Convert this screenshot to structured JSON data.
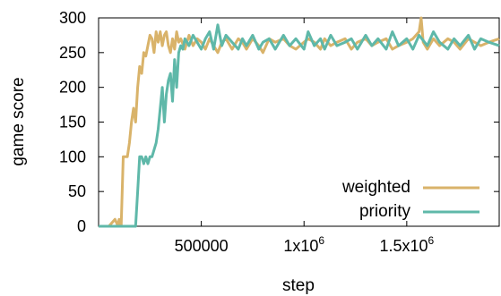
{
  "chart_data": {
    "type": "line",
    "xlabel": "step",
    "ylabel": "game score",
    "xlim": [
      0,
      1950000
    ],
    "ylim": [
      0,
      300
    ],
    "x_ticks": [
      {
        "value": 500000,
        "label": "500000"
      },
      {
        "value": 1000000,
        "label": "1x10",
        "exp": "6"
      },
      {
        "value": 1500000,
        "label": "1.5x10",
        "exp": "6"
      }
    ],
    "y_ticks": [
      0,
      50,
      100,
      150,
      200,
      250,
      300
    ],
    "grid": false,
    "legend_position": "bottom-right",
    "colors": {
      "weighted": "#d9b36a",
      "priority": "#5fb8a9"
    },
    "series": [
      {
        "name": "weighted",
        "x": [
          0,
          50000,
          80000,
          95000,
          100000,
          110000,
          120000,
          130000,
          140000,
          150000,
          160000,
          170000,
          180000,
          190000,
          200000,
          210000,
          220000,
          230000,
          240000,
          250000,
          260000,
          270000,
          280000,
          290000,
          300000,
          310000,
          320000,
          330000,
          340000,
          350000,
          360000,
          370000,
          380000,
          390000,
          400000,
          420000,
          440000,
          460000,
          480000,
          500000,
          520000,
          540000,
          560000,
          580000,
          600000,
          620000,
          650000,
          680000,
          700000,
          720000,
          750000,
          780000,
          800000,
          830000,
          860000,
          900000,
          930000,
          960000,
          1000000,
          1020000,
          1050000,
          1080000,
          1100000,
          1130000,
          1160000,
          1200000,
          1230000,
          1260000,
          1300000,
          1330000,
          1360000,
          1400000,
          1430000,
          1460000,
          1500000,
          1530000,
          1560000,
          1570000,
          1580000,
          1600000,
          1630000,
          1660000,
          1700000,
          1730000,
          1760000,
          1800000,
          1830000,
          1860000,
          1900000,
          1950000
        ],
        "y": [
          0,
          0,
          10,
          0,
          10,
          0,
          100,
          100,
          100,
          120,
          150,
          170,
          150,
          200,
          230,
          220,
          250,
          245,
          260,
          275,
          270,
          250,
          280,
          265,
          280,
          260,
          275,
          280,
          260,
          250,
          270,
          255,
          280,
          265,
          270,
          255,
          275,
          260,
          270,
          265,
          255,
          270,
          260,
          250,
          265,
          270,
          255,
          270,
          265,
          255,
          270,
          260,
          250,
          270,
          265,
          270,
          260,
          255,
          265,
          270,
          265,
          255,
          270,
          260,
          265,
          270,
          255,
          265,
          270,
          260,
          265,
          270,
          255,
          260,
          265,
          270,
          280,
          300,
          265,
          255,
          270,
          260,
          270,
          265,
          255,
          270,
          265,
          260,
          265,
          270
        ]
      },
      {
        "name": "priority",
        "x": [
          0,
          180000,
          190000,
          200000,
          210000,
          220000,
          230000,
          240000,
          250000,
          260000,
          270000,
          280000,
          290000,
          300000,
          310000,
          320000,
          330000,
          340000,
          350000,
          360000,
          370000,
          380000,
          390000,
          400000,
          410000,
          420000,
          440000,
          460000,
          480000,
          500000,
          520000,
          540000,
          560000,
          580000,
          600000,
          620000,
          650000,
          680000,
          700000,
          720000,
          750000,
          780000,
          800000,
          830000,
          860000,
          900000,
          930000,
          960000,
          1000000,
          1020000,
          1050000,
          1080000,
          1100000,
          1130000,
          1160000,
          1200000,
          1230000,
          1260000,
          1300000,
          1330000,
          1360000,
          1400000,
          1430000,
          1460000,
          1500000,
          1530000,
          1560000,
          1600000,
          1630000,
          1660000,
          1700000,
          1730000,
          1760000,
          1800000,
          1830000,
          1860000,
          1900000,
          1950000
        ],
        "y": [
          0,
          0,
          50,
          100,
          100,
          90,
          100,
          90,
          100,
          100,
          110,
          120,
          140,
          170,
          200,
          150,
          190,
          210,
          220,
          180,
          240,
          200,
          250,
          260,
          255,
          270,
          260,
          275,
          265,
          255,
          270,
          280,
          255,
          290,
          260,
          275,
          265,
          255,
          270,
          260,
          275,
          255,
          265,
          270,
          255,
          275,
          260,
          270,
          255,
          280,
          260,
          270,
          255,
          275,
          260,
          265,
          270,
          255,
          275,
          260,
          270,
          255,
          280,
          260,
          270,
          255,
          275,
          260,
          280,
          265,
          255,
          270,
          260,
          275,
          255,
          270,
          265,
          260
        ]
      }
    ]
  }
}
